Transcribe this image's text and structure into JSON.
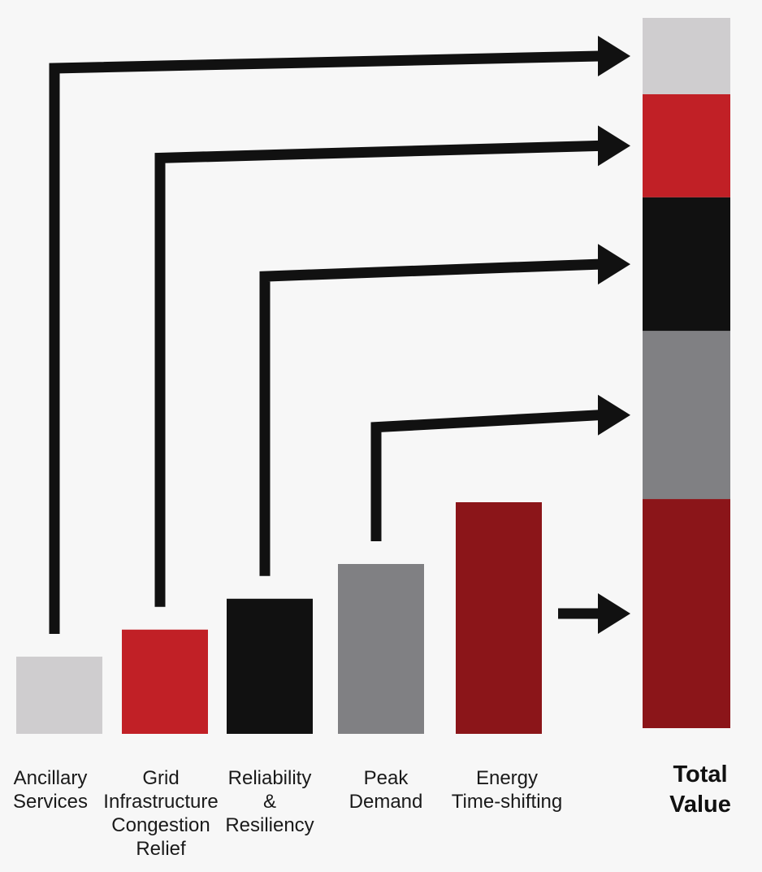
{
  "chart_data": {
    "type": "bar",
    "categories": [
      "Ancillary Services",
      "Grid Infrastructure Congestion Relief",
      "Reliability & Resiliency",
      "Peak Demand",
      "Energy Time-shifting"
    ],
    "category_label_lines": [
      [
        "Ancillary",
        "Services"
      ],
      [
        "Grid",
        "Infrastructure",
        "Congestion",
        "Relief"
      ],
      [
        "Reliability",
        "&",
        "Resiliency"
      ],
      [
        "Peak",
        "Demand"
      ],
      [
        "Energy",
        "Time-shifting"
      ]
    ],
    "values": [
      1.0,
      1.35,
      1.75,
      2.2,
      3.0
    ],
    "colors": [
      "#cfcdcf",
      "#c12026",
      "#111111",
      "#808083",
      "#8b1519"
    ],
    "stack": {
      "label_lines": [
        "Total",
        "Value"
      ],
      "order_top_to_bottom": [
        0,
        1,
        2,
        3,
        4
      ]
    },
    "title": "",
    "xlabel": "",
    "ylabel": "",
    "ylim": [
      0,
      9.3
    ],
    "grid": false
  }
}
